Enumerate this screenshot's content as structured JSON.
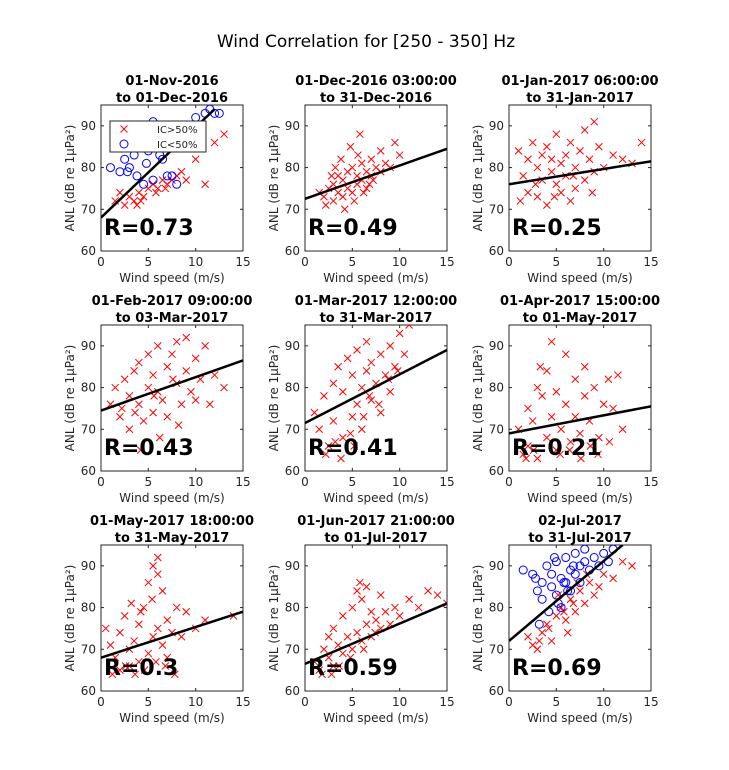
{
  "figure": {
    "title": "Wind Correlation for [250 - 350] Hz"
  },
  "common": {
    "xlabel": "Wind speed (m/s)",
    "ylabel": "ANL (dB re 1µPa²)",
    "xlim": [
      0,
      15
    ],
    "ylim": [
      60,
      95
    ],
    "xticks": [
      "0",
      "5",
      "10",
      "15"
    ],
    "yticks": [
      "60",
      "70",
      "80",
      "90"
    ],
    "legend": {
      "ic_high": "IC>50%",
      "ic_low": "IC<50%"
    },
    "colors": {
      "ic_high": "#ff0000",
      "ic_low": "#0000ff",
      "fit": "#000000"
    }
  },
  "chart_data": [
    {
      "type": "scatter",
      "title_line1": "01-Nov-2016",
      "title_line2": "to 01-Dec-2016",
      "r_label": "R=0.73",
      "xlabel": "Wind speed (m/s)",
      "ylabel": "ANL (dB re 1µPa²)",
      "xlim": [
        0,
        15
      ],
      "ylim": [
        60,
        95
      ],
      "grid": false,
      "legend": "top-left",
      "series": [
        {
          "name": "IC>50%",
          "marker": "x",
          "color": "#ff0000",
          "x": [
            1.5,
            2.5,
            3.0,
            3.5,
            4.0,
            4.5,
            5.0,
            5.5,
            6.0,
            6.5,
            7.0,
            8.0,
            9.0,
            10.0,
            11.0,
            12.0,
            13.0,
            3.8,
            4.2,
            5.8,
            6.8,
            7.5,
            2.0,
            8.5
          ],
          "y": [
            72,
            71,
            73,
            72,
            74,
            73,
            75,
            76,
            75,
            77,
            76,
            78,
            77,
            82,
            76,
            86,
            88,
            71,
            72,
            74,
            75,
            77,
            74,
            79
          ]
        },
        {
          "name": "IC<50%",
          "marker": "o",
          "color": "#0000ff",
          "x": [
            1.0,
            2.0,
            2.5,
            3.5,
            4.0,
            4.5,
            5.0,
            5.5,
            5.0,
            6.0,
            6.5,
            7.0,
            8.0,
            4.5,
            10.0,
            11.0,
            11.5,
            12.0,
            12.5,
            3.0,
            5.5,
            6.2,
            7.5,
            4.8,
            3.8,
            2.8
          ],
          "y": [
            80,
            79,
            82,
            83,
            85,
            88,
            90,
            91,
            84,
            86,
            82,
            78,
            76,
            76,
            92,
            93,
            94,
            93,
            93,
            80,
            77,
            83,
            78,
            81,
            78,
            79
          ]
        }
      ],
      "fit": {
        "x": [
          0,
          12
        ],
        "y": [
          68,
          94
        ]
      }
    },
    {
      "type": "scatter",
      "title_line1": "01-Dec-2016 03:00:00",
      "title_line2": "to 31-Dec-2016",
      "r_label": "R=0.49",
      "xlabel": "Wind speed (m/s)",
      "ylabel": "ANL (dB re 1µPa²)",
      "xlim": [
        0,
        15
      ],
      "ylim": [
        60,
        95
      ],
      "grid": false,
      "series": [
        {
          "name": "IC>50%",
          "marker": "x",
          "color": "#ff0000",
          "x": [
            1.5,
            2.0,
            2.5,
            3.0,
            3.0,
            3.5,
            3.5,
            4.0,
            4.0,
            4.5,
            4.5,
            5.0,
            5.0,
            5.5,
            5.5,
            6.0,
            6.0,
            6.5,
            6.5,
            7.0,
            7.0,
            7.5,
            8.0,
            8.0,
            8.5,
            9.0,
            9.5,
            10.0,
            2.2,
            3.8,
            4.8,
            5.8,
            6.8,
            2.8,
            4.2,
            5.2,
            6.2,
            7.2,
            3.2,
            5.6
          ],
          "y": [
            74,
            73,
            75,
            72,
            76,
            74,
            78,
            73,
            77,
            75,
            79,
            74,
            80,
            76,
            78,
            77,
            81,
            75,
            79,
            78,
            82,
            80,
            79,
            84,
            81,
            80,
            86,
            83,
            71,
            82,
            85,
            88,
            76,
            78,
            70,
            72,
            74,
            77,
            80,
            83
          ]
        }
      ],
      "fit": {
        "x": [
          0,
          15
        ],
        "y": [
          72.5,
          84.5
        ]
      }
    },
    {
      "type": "scatter",
      "title_line1": "01-Jan-2017 06:00:00",
      "title_line2": "to 31-Jan-2017",
      "r_label": "R=0.25",
      "xlabel": "Wind speed (m/s)",
      "ylabel": "ANL (dB re 1µPa²)",
      "xlim": [
        0,
        15
      ],
      "ylim": [
        60,
        95
      ],
      "grid": false,
      "series": [
        {
          "name": "IC>50%",
          "marker": "x",
          "color": "#ff0000",
          "x": [
            1.0,
            1.5,
            2.0,
            2.0,
            2.5,
            3.0,
            3.0,
            3.5,
            3.5,
            4.0,
            4.0,
            4.5,
            4.5,
            5.0,
            5.0,
            5.5,
            5.5,
            6.0,
            6.0,
            6.5,
            6.5,
            7.0,
            7.0,
            7.5,
            8.0,
            8.0,
            8.5,
            9.0,
            9.0,
            9.5,
            10.0,
            11.0,
            12.0,
            13.0,
            14.0,
            1.2,
            2.8,
            4.8,
            6.8,
            8.8
          ],
          "y": [
            84,
            78,
            82,
            74,
            86,
            80,
            73,
            83,
            77,
            85,
            71,
            79,
            82,
            76,
            88,
            81,
            74,
            83,
            78,
            72,
            86,
            80,
            75,
            84,
            77,
            89,
            82,
            79,
            91,
            85,
            80,
            83,
            82,
            81,
            86,
            72,
            76,
            73,
            78,
            74
          ]
        }
      ],
      "fit": {
        "x": [
          0,
          15
        ],
        "y": [
          76,
          81.5
        ]
      }
    },
    {
      "type": "scatter",
      "title_line1": "01-Feb-2017 09:00:00",
      "title_line2": "to 03-Mar-2017",
      "r_label": "R=0.43",
      "xlabel": "Wind speed (m/s)",
      "ylabel": "ANL (dB re 1µPa²)",
      "xlim": [
        0,
        15
      ],
      "ylim": [
        60,
        95
      ],
      "grid": false,
      "series": [
        {
          "name": "IC>50%",
          "marker": "x",
          "color": "#ff0000",
          "x": [
            1.0,
            1.5,
            2.0,
            2.5,
            3.0,
            3.0,
            3.5,
            4.0,
            4.0,
            4.5,
            5.0,
            5.0,
            5.5,
            5.5,
            6.0,
            6.0,
            6.5,
            7.0,
            7.0,
            7.5,
            8.0,
            8.0,
            8.5,
            9.0,
            9.0,
            9.5,
            10.0,
            10.0,
            10.5,
            11.0,
            11.5,
            12.0,
            13.0,
            2.2,
            4.2,
            6.2,
            8.2,
            3.6,
            5.6,
            7.6
          ],
          "y": [
            76,
            80,
            73,
            82,
            78,
            70,
            84,
            76,
            86,
            72,
            80,
            88,
            74,
            83,
            79,
            90,
            77,
            85,
            73,
            88,
            81,
            91,
            76,
            84,
            92,
            79,
            87,
            77,
            82,
            90,
            76,
            83,
            80,
            75,
            65,
            68,
            71,
            74,
            78,
            82
          ]
        }
      ],
      "fit": {
        "x": [
          0,
          15
        ],
        "y": [
          74.5,
          86.5
        ]
      }
    },
    {
      "type": "scatter",
      "title_line1": "01-Mar-2017 12:00:00",
      "title_line2": "to 31-Mar-2017",
      "r_label": "R=0.41",
      "xlabel": "Wind speed (m/s)",
      "ylabel": "ANL (dB re 1µPa²)",
      "xlim": [
        0,
        15
      ],
      "ylim": [
        60,
        95
      ],
      "grid": false,
      "series": [
        {
          "name": "IC>50%",
          "marker": "x",
          "color": "#ff0000",
          "x": [
            1.0,
            1.5,
            2.0,
            2.5,
            3.0,
            3.0,
            3.5,
            4.0,
            4.0,
            4.5,
            5.0,
            5.0,
            5.5,
            5.5,
            6.0,
            6.0,
            6.5,
            6.5,
            7.0,
            7.0,
            7.5,
            8.0,
            8.0,
            8.5,
            9.0,
            9.0,
            9.5,
            10.0,
            10.5,
            11.0,
            2.2,
            3.2,
            4.8,
            6.2,
            7.8,
            8.8,
            5.2,
            6.8,
            3.8,
            9.8
          ],
          "y": [
            74,
            70,
            78,
            66,
            81,
            72,
            85,
            68,
            79,
            87,
            73,
            83,
            76,
            89,
            80,
            70,
            84,
            91,
            77,
            86,
            81,
            74,
            88,
            83,
            79,
            90,
            85,
            93,
            88,
            95,
            64,
            67,
            69,
            73,
            76,
            82,
            66,
            78,
            63,
            84
          ]
        }
      ],
      "fit": {
        "x": [
          0,
          15
        ],
        "y": [
          71.5,
          89
        ]
      }
    },
    {
      "type": "scatter",
      "title_line1": "01-Apr-2017 15:00:00",
      "title_line2": "to 01-May-2017",
      "r_label": "R=0.21",
      "xlabel": "Wind speed (m/s)",
      "ylabel": "ANL (dB re 1µPa²)",
      "xlim": [
        0,
        15
      ],
      "ylim": [
        60,
        95
      ],
      "grid": false,
      "series": [
        {
          "name": "IC>50%",
          "marker": "x",
          "color": "#ff0000",
          "x": [
            1.0,
            1.5,
            2.0,
            2.0,
            2.5,
            3.0,
            3.0,
            3.5,
            4.0,
            4.0,
            4.5,
            5.0,
            5.0,
            5.5,
            6.0,
            6.0,
            6.5,
            7.0,
            7.0,
            7.5,
            8.0,
            8.0,
            8.5,
            9.0,
            9.5,
            10.0,
            10.5,
            11.0,
            11.5,
            12.0,
            3.3,
            4.5,
            1.8,
            2.6,
            5.4,
            6.4,
            7.6,
            8.6,
            9.4,
            10.6
          ],
          "y": [
            70,
            64,
            75,
            66,
            72,
            80,
            63,
            78,
            68,
            84,
            73,
            65,
            79,
            70,
            76,
            88,
            67,
            73,
            82,
            69,
            78,
            85,
            72,
            80,
            68,
            76,
            82,
            75,
            83,
            70,
            85,
            91,
            63,
            65,
            64,
            65,
            63,
            66,
            64,
            67
          ]
        }
      ],
      "fit": {
        "x": [
          0,
          15
        ],
        "y": [
          69,
          75.5
        ]
      }
    },
    {
      "type": "scatter",
      "title_line1": "01-May-2017 18:00:00",
      "title_line2": "to 31-May-2017",
      "r_label": "R=0.3",
      "xlabel": "Wind speed (m/s)",
      "ylabel": "ANL (dB re 1µPa²)",
      "xlim": [
        0,
        15
      ],
      "ylim": [
        60,
        95
      ],
      "grid": false,
      "series": [
        {
          "name": "IC>50%",
          "marker": "x",
          "color": "#ff0000",
          "x": [
            0.5,
            1.0,
            1.5,
            2.0,
            2.0,
            2.5,
            3.0,
            3.0,
            3.5,
            4.0,
            4.0,
            4.5,
            5.0,
            5.0,
            5.5,
            5.5,
            6.0,
            6.0,
            6.5,
            6.5,
            7.0,
            7.0,
            7.5,
            8.0,
            8.5,
            9.0,
            10.0,
            11.0,
            14.0,
            1.2,
            2.6,
            3.6,
            4.6,
            5.8,
            6.8,
            7.8,
            6.0,
            5.4,
            3.2,
            4.2
          ],
          "y": [
            75,
            71,
            68,
            74,
            65,
            78,
            70,
            66,
            72,
            76,
            67,
            80,
            69,
            86,
            73,
            90,
            75,
            88,
            71,
            84,
            77,
            68,
            74,
            80,
            73,
            79,
            75,
            77,
            78,
            64,
            66,
            64,
            65,
            67,
            66,
            64,
            92,
            82,
            81,
            79
          ]
        }
      ],
      "fit": {
        "x": [
          0,
          15
        ],
        "y": [
          68,
          79
        ]
      }
    },
    {
      "type": "scatter",
      "title_line1": "01-Jun-2017 21:00:00",
      "title_line2": "to 01-Jul-2017",
      "r_label": "R=0.59",
      "xlabel": "Wind speed (m/s)",
      "ylabel": "ANL (dB re 1µPa²)",
      "xlim": [
        0,
        15
      ],
      "ylim": [
        60,
        95
      ],
      "grid": false,
      "series": [
        {
          "name": "IC>50%",
          "marker": "x",
          "color": "#ff0000",
          "x": [
            1.0,
            1.5,
            2.0,
            2.5,
            2.5,
            3.0,
            3.0,
            3.5,
            4.0,
            4.0,
            4.5,
            5.0,
            5.0,
            5.5,
            5.5,
            6.0,
            6.0,
            6.5,
            6.5,
            7.0,
            7.0,
            7.5,
            8.0,
            8.0,
            8.5,
            9.0,
            9.5,
            10.0,
            11.0,
            12.0,
            13.0,
            14.0,
            15.0,
            1.8,
            3.6,
            4.8,
            6.2,
            7.4,
            2.8,
            5.8
          ],
          "y": [
            67,
            65,
            70,
            68,
            73,
            66,
            75,
            71,
            69,
            78,
            73,
            70,
            80,
            74,
            84,
            72,
            82,
            76,
            85,
            73,
            79,
            77,
            75,
            83,
            79,
            76,
            80,
            78,
            82,
            80,
            84,
            83,
            81,
            64,
            66,
            68,
            70,
            74,
            64,
            86
          ]
        }
      ],
      "fit": {
        "x": [
          0,
          15
        ],
        "y": [
          66.5,
          81
        ]
      }
    },
    {
      "type": "scatter",
      "title_line1": "02-Jul-2017",
      "title_line2": "to 31-Jul-2017",
      "r_label": "R=0.69",
      "xlabel": "Wind speed (m/s)",
      "ylabel": "ANL (dB re 1µPa²)",
      "xlim": [
        0,
        15
      ],
      "ylim": [
        60,
        95
      ],
      "grid": false,
      "series": [
        {
          "name": "IC>50%",
          "marker": "x",
          "color": "#ff0000",
          "x": [
            2.0,
            2.5,
            3.0,
            3.5,
            4.0,
            4.5,
            5.0,
            5.5,
            6.0,
            6.5,
            7.0,
            7.5,
            8.0,
            8.5,
            9.0,
            10.0,
            11.0,
            12.0,
            13.0,
            4.2,
            5.2,
            6.2,
            7.2,
            3.2,
            8.2,
            9.5,
            5.8,
            6.8
          ],
          "y": [
            73,
            71,
            70,
            74,
            76,
            72,
            78,
            80,
            77,
            82,
            79,
            84,
            81,
            86,
            83,
            88,
            87,
            91,
            90,
            75,
            83,
            74,
            86,
            72,
            88,
            85,
            79,
            81
          ]
        },
        {
          "name": "IC<50%",
          "marker": "o",
          "color": "#0000ff",
          "x": [
            1.5,
            2.5,
            3.0,
            3.5,
            3.5,
            4.0,
            4.5,
            4.5,
            5.0,
            5.0,
            5.5,
            5.5,
            6.0,
            6.0,
            6.5,
            6.5,
            7.0,
            7.0,
            7.5,
            7.5,
            8.0,
            8.0,
            8.5,
            9.0,
            9.5,
            10.0,
            10.5,
            11.0,
            3.2,
            4.2,
            5.2,
            6.2,
            2.8,
            4.8,
            5.8,
            6.8
          ],
          "y": [
            89,
            88,
            84,
            86,
            82,
            90,
            85,
            88,
            83,
            91,
            87,
            80,
            92,
            86,
            89,
            84,
            93,
            88,
            90,
            86,
            91,
            94,
            89,
            92,
            90,
            93,
            91,
            94,
            76,
            79,
            81,
            84,
            87,
            92,
            86,
            90
          ]
        }
      ],
      "fit": {
        "x": [
          0,
          12
        ],
        "y": [
          72,
          95
        ]
      }
    }
  ]
}
